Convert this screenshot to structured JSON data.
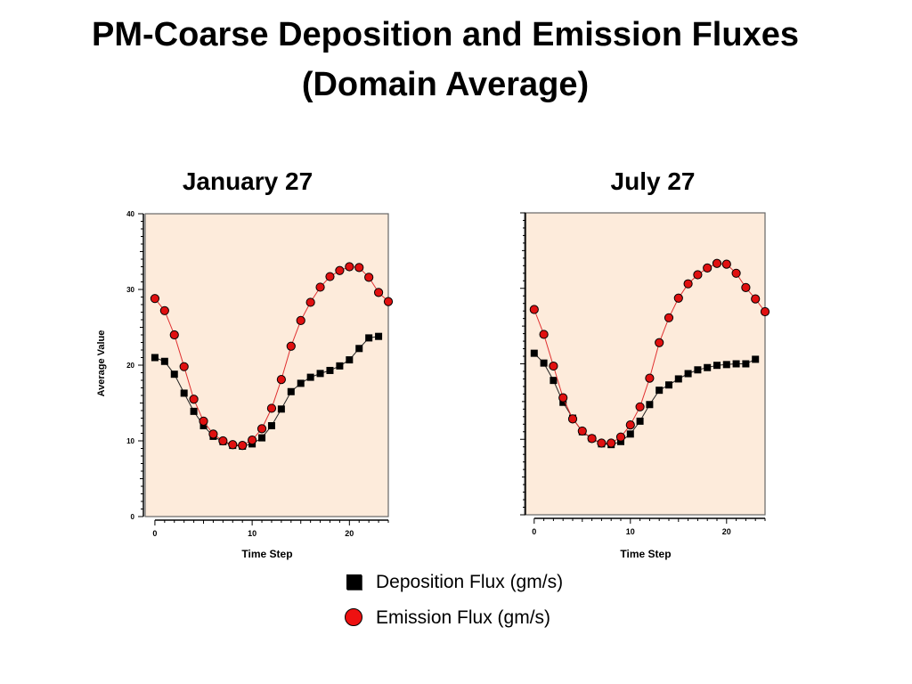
{
  "title_line1": "PM-Coarse Deposition and Emission Fluxes",
  "title_line2": "(Domain Average)",
  "legend": {
    "deposition": "Deposition Flux (gm/s)",
    "emission": "Emission Flux (gm/s)"
  },
  "colors": {
    "plot_background": "#fdebdb",
    "deposition": "#000000",
    "emission": "#e01010",
    "emission_line": "#e03030"
  },
  "chart_data": [
    {
      "type": "line",
      "title": "January 27",
      "xlabel": "Time Step",
      "ylabel": "Average Value",
      "xlim": [
        -1,
        24
      ],
      "ylim": [
        0,
        40
      ],
      "xticks": [
        0,
        10,
        20
      ],
      "yticks": [
        0,
        10,
        20,
        30,
        40
      ],
      "series": [
        {
          "name": "Deposition Flux (gm/s)",
          "marker": "square",
          "x": [
            0,
            1,
            2,
            3,
            4,
            5,
            6,
            7,
            8,
            9,
            10,
            11,
            12,
            13,
            14,
            15,
            16,
            17,
            18,
            19,
            20,
            21,
            22,
            23
          ],
          "y": [
            21.0,
            20.5,
            18.8,
            16.3,
            13.9,
            12.0,
            10.6,
            9.9,
            9.4,
            9.3,
            9.6,
            10.4,
            12.0,
            14.2,
            16.5,
            17.6,
            18.4,
            18.9,
            19.3,
            19.9,
            20.7,
            22.2,
            23.6,
            23.8
          ]
        },
        {
          "name": "Emission Flux (gm/s)",
          "marker": "circle",
          "x": [
            0,
            1,
            2,
            3,
            4,
            5,
            6,
            7,
            8,
            9,
            10,
            11,
            12,
            13,
            14,
            15,
            16,
            17,
            18,
            19,
            20,
            21,
            22,
            23,
            24
          ],
          "y": [
            28.8,
            27.2,
            24.0,
            19.8,
            15.5,
            12.6,
            10.9,
            10.0,
            9.5,
            9.4,
            10.1,
            11.6,
            14.3,
            18.1,
            22.5,
            25.9,
            28.3,
            30.3,
            31.7,
            32.5,
            33.0,
            32.9,
            31.6,
            29.6,
            28.4
          ]
        }
      ]
    },
    {
      "type": "line",
      "title": "July 27",
      "xlabel": "Time Step",
      "ylabel": "",
      "xlim": [
        -1,
        24
      ],
      "ylim": [
        0,
        40
      ],
      "xticks": [
        0,
        10,
        20
      ],
      "yticks": [],
      "series": [
        {
          "name": "Deposition Flux (gm/s)",
          "marker": "square",
          "x": [
            0,
            1,
            2,
            3,
            4,
            5,
            6,
            7,
            8,
            9,
            10,
            11,
            12,
            13,
            14,
            15,
            16,
            17,
            18,
            19,
            20,
            21,
            22,
            23
          ],
          "y": [
            21.4,
            20.1,
            17.8,
            14.9,
            12.8,
            11.0,
            10.1,
            9.4,
            9.3,
            9.7,
            10.7,
            12.4,
            14.6,
            16.5,
            17.2,
            18.0,
            18.7,
            19.2,
            19.5,
            19.8,
            19.9,
            20.0,
            20.0,
            20.6
          ]
        },
        {
          "name": "Emission Flux (gm/s)",
          "marker": "circle",
          "x": [
            0,
            1,
            2,
            3,
            4,
            5,
            6,
            7,
            8,
            9,
            10,
            11,
            12,
            13,
            14,
            15,
            16,
            17,
            18,
            19,
            20,
            21,
            22,
            23,
            24
          ],
          "y": [
            27.2,
            23.9,
            19.7,
            15.5,
            12.7,
            11.1,
            10.1,
            9.5,
            9.5,
            10.3,
            11.9,
            14.3,
            18.1,
            22.8,
            26.1,
            28.7,
            30.6,
            31.8,
            32.7,
            33.3,
            33.2,
            32.0,
            30.1,
            28.6,
            26.9
          ]
        }
      ]
    }
  ]
}
